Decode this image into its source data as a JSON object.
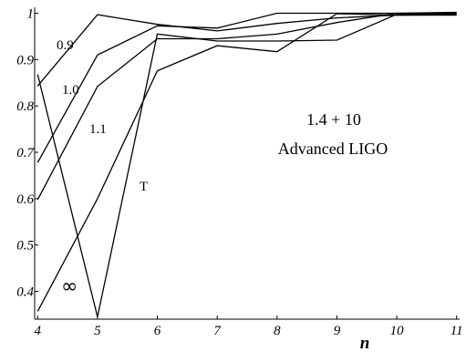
{
  "chart_data": {
    "type": "line",
    "xlabel": "n",
    "ylabel": "",
    "x": [
      4,
      5,
      6,
      7,
      8,
      9,
      10,
      11
    ],
    "xlim": [
      3.95,
      11.05
    ],
    "ylim": [
      0.34,
      1.005
    ],
    "y_ticks": [
      {
        "value": 0.4,
        "label": "0.4"
      },
      {
        "value": 0.5,
        "label": "0.5"
      },
      {
        "value": 0.6,
        "label": "0.6"
      },
      {
        "value": 0.7,
        "label": "0.7"
      },
      {
        "value": 0.8,
        "label": "0.8"
      },
      {
        "value": 0.9,
        "label": "0.9"
      },
      {
        "value": 1.0,
        "label": "1"
      }
    ],
    "x_ticks": [
      {
        "value": 4,
        "label": "4"
      },
      {
        "value": 5,
        "label": "5"
      },
      {
        "value": 6,
        "label": "6"
      },
      {
        "value": 7,
        "label": "7"
      },
      {
        "value": 8,
        "label": "8"
      },
      {
        "value": 9,
        "label": "9"
      },
      {
        "value": 10,
        "label": "10"
      },
      {
        "value": 11,
        "label": "11"
      }
    ],
    "series": [
      {
        "name": "0.9",
        "values": [
          0.843,
          0.997,
          0.976,
          0.962,
          0.978,
          0.99,
          0.996,
          0.997
        ]
      },
      {
        "name": "1.0",
        "values": [
          0.678,
          0.91,
          0.973,
          0.968,
          1.0,
          1.0,
          1.0,
          1.0
        ]
      },
      {
        "name": "1.1",
        "values": [
          0.598,
          0.842,
          0.945,
          0.945,
          0.955,
          0.98,
          1.0,
          1.002
        ]
      },
      {
        "name": "T",
        "values": [
          0.868,
          0.345,
          0.955,
          0.94,
          0.94,
          0.942,
          0.998,
          0.998
        ]
      },
      {
        "name": "∞",
        "values": [
          0.357,
          0.6,
          0.876,
          0.93,
          0.917,
          0.999,
          0.996,
          0.996
        ]
      }
    ],
    "annotations": [
      "1.4 + 10",
      "Advanced LIGO"
    ]
  }
}
